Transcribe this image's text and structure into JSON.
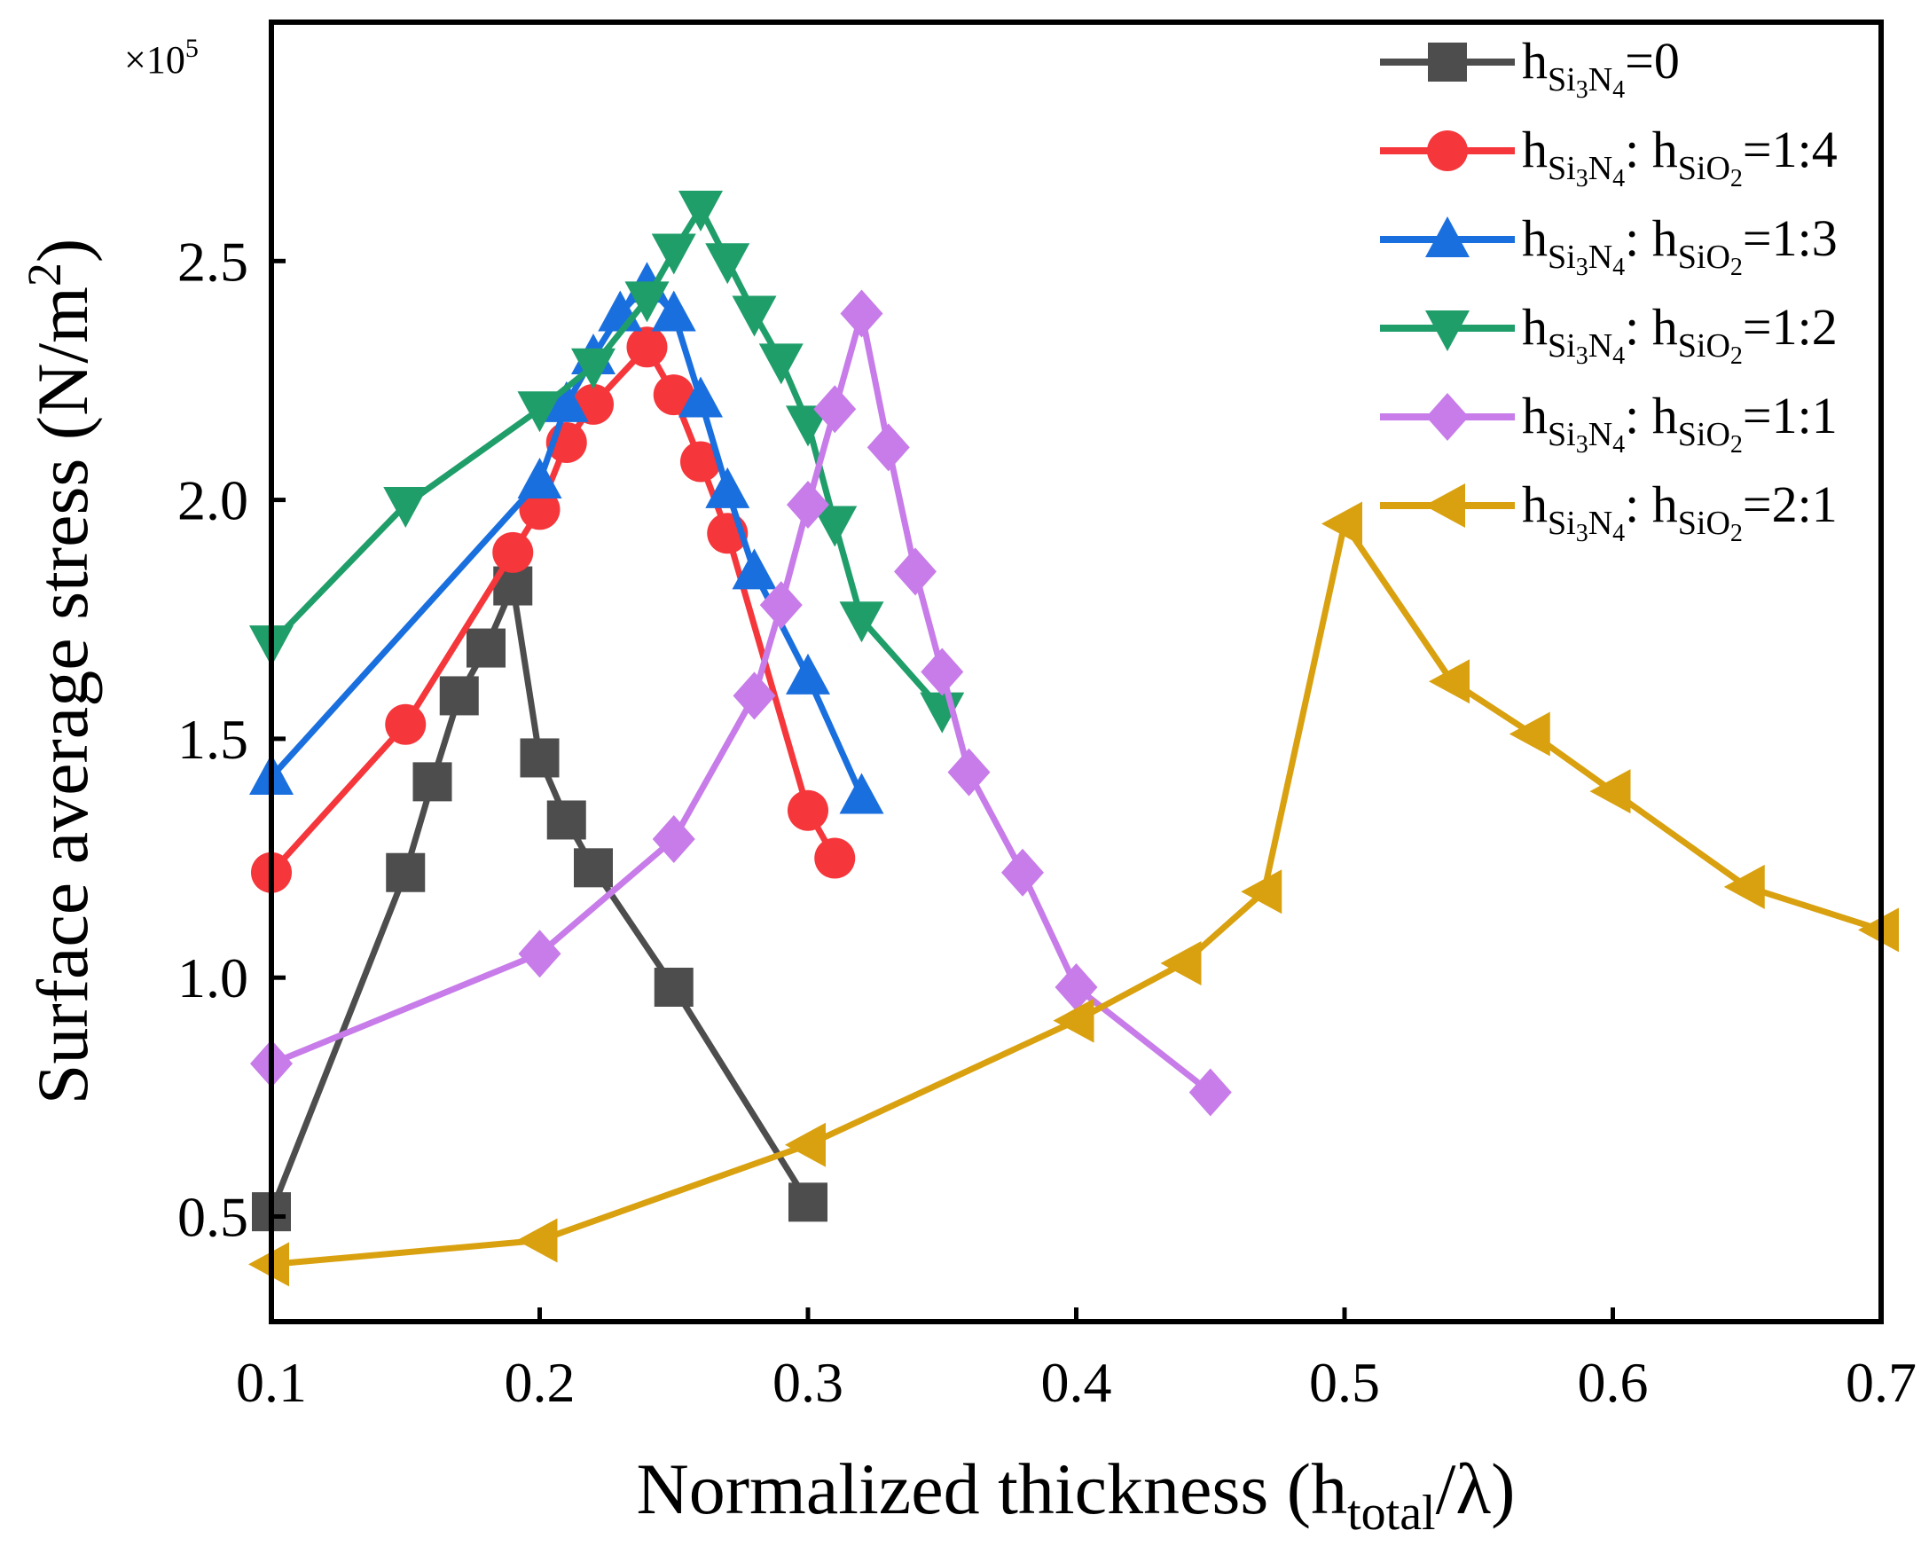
{
  "chart_data": {
    "type": "line",
    "multiplier_label": "×10",
    "multiplier_exponent": "5",
    "xlabel": {
      "main": "Normalized thickness (h",
      "sub": "total",
      "tail": "/λ)"
    },
    "ylabel": {
      "main": "Surface average stress (N/m",
      "sup": "2",
      "tail": ")"
    },
    "xlim": [
      0.1,
      0.7
    ],
    "ylim": [
      0.28,
      3.0
    ],
    "xticks": [
      0.1,
      0.2,
      0.3,
      0.4,
      0.5,
      0.6,
      0.7
    ],
    "xtick_labels": [
      "0.1",
      "0.2",
      "0.3",
      "0.4",
      "0.5",
      "0.6",
      "0.7"
    ],
    "yticks": [
      0.5,
      1.0,
      1.5,
      2.0,
      2.5
    ],
    "ytick_labels": [
      "0.5",
      "1.0",
      "1.5",
      "2.0",
      "2.5"
    ],
    "legend_position": "top-right",
    "series": [
      {
        "name": "h_Si3N4=0",
        "legend": {
          "h": "h",
          "sub1": "Si",
          "sub1a": "3",
          "sub1b": "N",
          "sub1c": "4",
          "mid": "",
          "sub2": "",
          "sub2a": "",
          "ratio": "=0"
        },
        "color": "#4d4d4d",
        "marker": "square",
        "x": [
          0.1,
          0.15,
          0.16,
          0.17,
          0.18,
          0.19,
          0.2,
          0.21,
          0.22,
          0.25,
          0.3
        ],
        "y": [
          0.51,
          1.22,
          1.41,
          1.59,
          1.69,
          1.82,
          1.46,
          1.33,
          1.23,
          0.98,
          0.53
        ]
      },
      {
        "name": "h_Si3N4: h_SiO2=1:4",
        "legend": {
          "h": "h",
          "sub1": "Si",
          "sub1a": "3",
          "sub1b": "N",
          "sub1c": "4",
          "mid": ": h",
          "sub2": "SiO",
          "sub2a": "2",
          "ratio": "=1:4"
        },
        "color": "#f5363b",
        "marker": "circle",
        "x": [
          0.1,
          0.15,
          0.19,
          0.2,
          0.21,
          0.22,
          0.24,
          0.25,
          0.26,
          0.27,
          0.3,
          0.31
        ],
        "y": [
          1.22,
          1.53,
          1.89,
          1.98,
          2.12,
          2.2,
          2.32,
          2.22,
          2.08,
          1.93,
          1.35,
          1.25
        ]
      },
      {
        "name": "h_Si3N4: h_SiO2=1:3",
        "legend": {
          "h": "h",
          "sub1": "Si",
          "sub1a": "3",
          "sub1b": "N",
          "sub1c": "4",
          "mid": ": h",
          "sub2": "SiO",
          "sub2a": "2",
          "ratio": "=1:3"
        },
        "color": "#1a6fdf",
        "marker": "triangle-up",
        "x": [
          0.1,
          0.2,
          0.21,
          0.22,
          0.23,
          0.24,
          0.25,
          0.26,
          0.27,
          0.28,
          0.3,
          0.32
        ],
        "y": [
          1.42,
          2.04,
          2.2,
          2.3,
          2.39,
          2.45,
          2.39,
          2.21,
          2.02,
          1.85,
          1.63,
          1.38
        ]
      },
      {
        "name": "h_Si3N4: h_SiO2=1:2",
        "legend": {
          "h": "h",
          "sub1": "Si",
          "sub1a": "3",
          "sub1b": "N",
          "sub1c": "4",
          "mid": ": h",
          "sub2": "SiO",
          "sub2a": "2",
          "ratio": "=1:2"
        },
        "color": "#1f9e6a",
        "marker": "triangle-down",
        "x": [
          0.1,
          0.15,
          0.2,
          0.22,
          0.24,
          0.25,
          0.26,
          0.27,
          0.28,
          0.29,
          0.3,
          0.31,
          0.32,
          0.35
        ],
        "y": [
          1.7,
          1.99,
          2.19,
          2.28,
          2.42,
          2.52,
          2.61,
          2.5,
          2.39,
          2.29,
          2.16,
          1.95,
          1.75,
          1.56
        ]
      },
      {
        "name": "h_Si3N4: h_SiO2=1:1",
        "legend": {
          "h": "h",
          "sub1": "Si",
          "sub1a": "3",
          "sub1b": "N",
          "sub1c": "4",
          "mid": ": h",
          "sub2": "SiO",
          "sub2a": "2",
          "ratio": "=1:1"
        },
        "color": "#c77ce9",
        "marker": "diamond",
        "x": [
          0.1,
          0.2,
          0.25,
          0.28,
          0.29,
          0.3,
          0.31,
          0.32,
          0.33,
          0.34,
          0.35,
          0.36,
          0.38,
          0.4,
          0.45
        ],
        "y": [
          0.82,
          1.05,
          1.29,
          1.59,
          1.78,
          1.99,
          2.19,
          2.39,
          2.11,
          1.85,
          1.64,
          1.43,
          1.22,
          0.98,
          0.76
        ]
      },
      {
        "name": "h_Si3N4: h_SiO2=2:1",
        "legend": {
          "h": "h",
          "sub1": "Si",
          "sub1a": "3",
          "sub1b": "N",
          "sub1c": "4",
          "mid": ": h",
          "sub2": "SiO",
          "sub2a": "2",
          "ratio": "=2:1"
        },
        "color": "#d9a10f",
        "marker": "triangle-left",
        "x": [
          0.1,
          0.2,
          0.3,
          0.4,
          0.44,
          0.47,
          0.5,
          0.54,
          0.57,
          0.6,
          0.65,
          0.7
        ],
        "y": [
          0.4,
          0.45,
          0.65,
          0.91,
          1.03,
          1.18,
          1.95,
          1.62,
          1.51,
          1.39,
          1.19,
          1.1
        ]
      }
    ]
  }
}
